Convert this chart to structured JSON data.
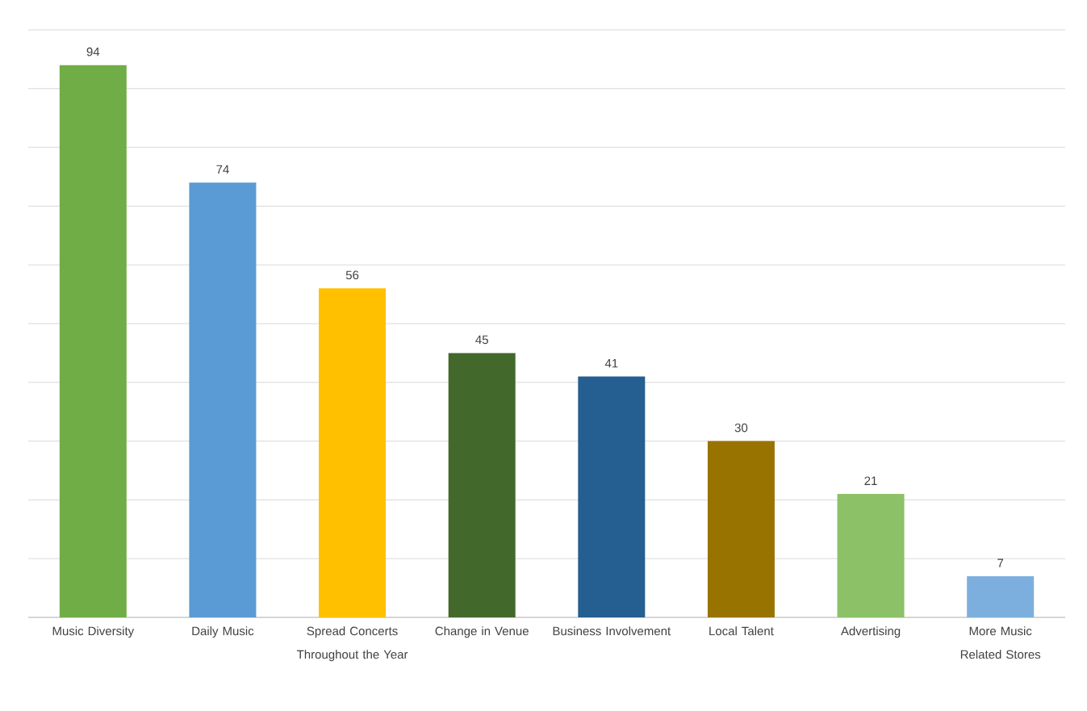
{
  "chart_data": {
    "type": "bar",
    "categories": [
      "Music Diversity",
      "Daily Music",
      "Spread Concerts Throughout the Year",
      "Change in Venue",
      "Business Involvement",
      "Local Talent",
      "Advertising",
      "More Music Related Stores"
    ],
    "values": [
      94,
      74,
      56,
      45,
      41,
      30,
      21,
      7
    ],
    "colors": [
      "#70ad47",
      "#5b9bd5",
      "#ffc000",
      "#43682b",
      "#255e91",
      "#997300",
      "#8cc168",
      "#7cafdd"
    ],
    "ylim": [
      0,
      100
    ],
    "yticks": [
      {
        "value": 0,
        "label": null
      },
      {
        "value": 10,
        "label": null
      },
      {
        "value": 20,
        "label": null
      },
      {
        "value": 30,
        "label": null
      },
      {
        "value": 40,
        "label": null
      },
      {
        "value": 50,
        "label": null
      },
      {
        "value": 60,
        "label": null
      },
      {
        "value": 70,
        "label": null
      },
      {
        "value": 80,
        "label": null
      },
      {
        "value": 90,
        "label": null
      },
      {
        "value": 100,
        "label": null
      }
    ],
    "tick_labels": "x",
    "grid": "y",
    "data_labels": true
  }
}
